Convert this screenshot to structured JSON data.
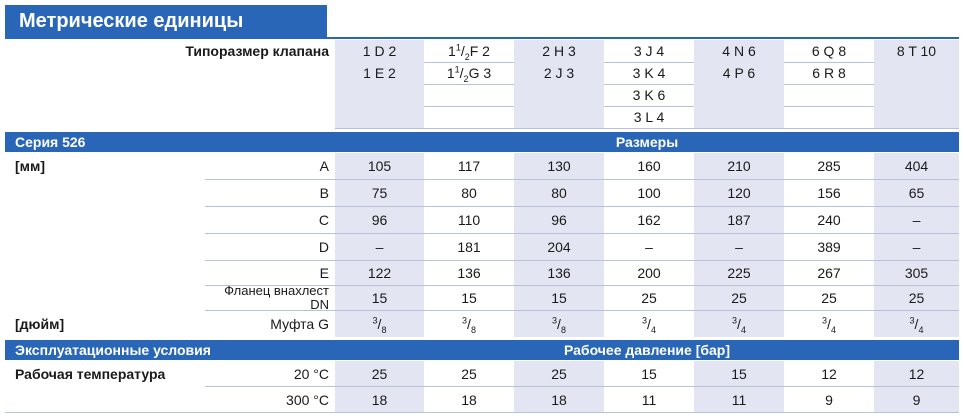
{
  "title": "Метрические единицы",
  "size_label": "Типоразмер клапана",
  "sizes": [
    [
      "1 D 2",
      "1 E 2",
      "",
      ""
    ],
    [
      {
        "w": "1",
        "n": "1",
        "d": "2",
        "t": "F 2"
      },
      {
        "w": "1",
        "n": "1",
        "d": "2",
        "t": "G 3"
      },
      "",
      ""
    ],
    [
      "2 H 3",
      "2 J 3",
      "",
      ""
    ],
    [
      "3 J 4",
      "3 K 4",
      "3 K 6",
      "3 L 4"
    ],
    [
      "4 N 6",
      "4 P 6",
      "",
      ""
    ],
    [
      "6 Q 8",
      "6 R 8",
      "",
      ""
    ],
    [
      "8 T 10",
      "",
      "",
      ""
    ]
  ],
  "series_band": {
    "left": "Серия 526",
    "center": "Размеры"
  },
  "unit_mm": "[мм]",
  "unit_inch": "[дюйм]",
  "dims": [
    {
      "label": "A",
      "values": [
        "105",
        "117",
        "130",
        "160",
        "210",
        "285",
        "404"
      ]
    },
    {
      "label": "B",
      "values": [
        "75",
        "80",
        "80",
        "100",
        "120",
        "156",
        "65"
      ]
    },
    {
      "label": "C",
      "values": [
        "96",
        "110",
        "96",
        "162",
        "187",
        "240",
        "–"
      ]
    },
    {
      "label": "D",
      "values": [
        "–",
        "181",
        "204",
        "–",
        "–",
        "389",
        "–"
      ]
    },
    {
      "label": "E",
      "values": [
        "122",
        "136",
        "136",
        "200",
        "225",
        "267",
        "305"
      ]
    },
    {
      "label": "Фланец внахлест DN",
      "label_l1": "Фланец внахлест",
      "label_l2": "DN",
      "values": [
        "15",
        "15",
        "15",
        "25",
        "25",
        "25",
        "25"
      ]
    }
  ],
  "coupling": {
    "label": "Муфта G",
    "values": [
      [
        "3",
        "8"
      ],
      [
        "3",
        "8"
      ],
      [
        "3",
        "8"
      ],
      [
        "3",
        "4"
      ],
      [
        "3",
        "4"
      ],
      [
        "3",
        "4"
      ],
      [
        "3",
        "4"
      ]
    ]
  },
  "ops_band": {
    "left": "Эксплуатационные условия",
    "center": "Рабочее давление [бар]"
  },
  "temp_label": "Рабочая температура",
  "temps": [
    {
      "label": "20 °C",
      "values": [
        "25",
        "25",
        "25",
        "15",
        "15",
        "12",
        "12"
      ]
    },
    {
      "label": "300 °C",
      "values": [
        "18",
        "18",
        "18",
        "11",
        "11",
        "9",
        "9"
      ]
    }
  ]
}
